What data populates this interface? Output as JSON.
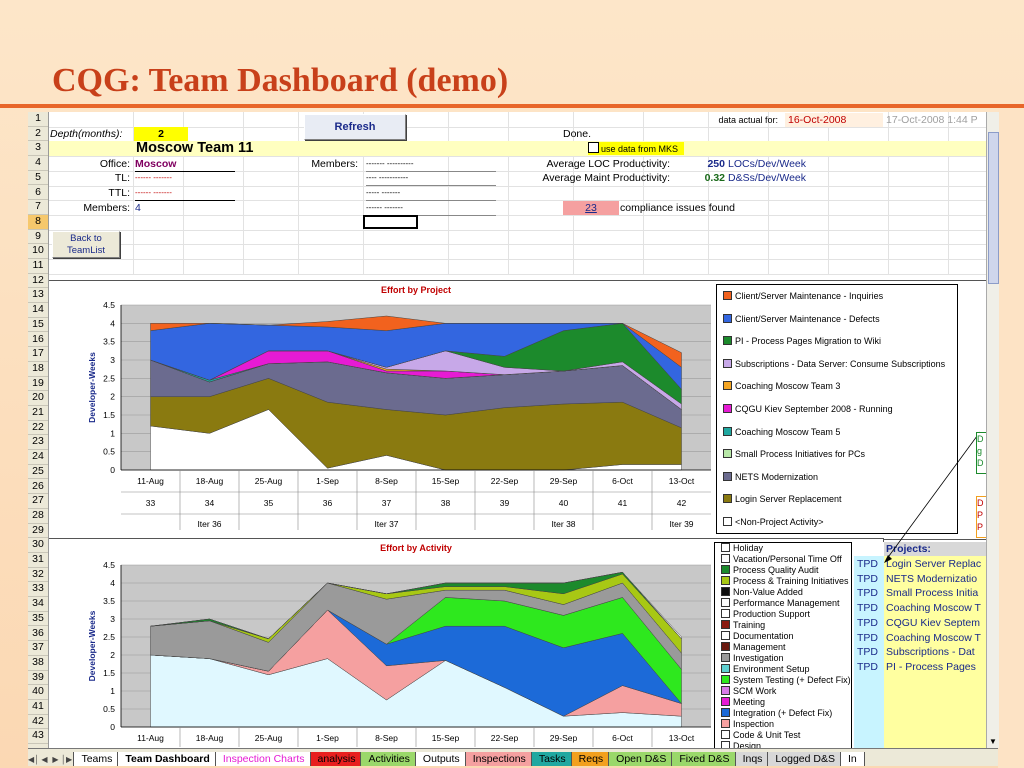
{
  "slide": {
    "title": "CQG: Team Dashboard (demo)"
  },
  "rows": [
    "1",
    "2",
    "3",
    "4",
    "5",
    "6",
    "7",
    "8",
    "9",
    "10",
    "11",
    "12",
    "13",
    "14",
    "15",
    "16",
    "17",
    "18",
    "19",
    "20",
    "21",
    "22",
    "23",
    "24",
    "25",
    "26",
    "27",
    "28",
    "29",
    "30",
    "31",
    "32",
    "33",
    "34",
    "35",
    "36",
    "37",
    "38",
    "39",
    "40",
    "41",
    "42",
    "43"
  ],
  "header": {
    "depth_label": "Depth(months):",
    "depth_value": "2",
    "refresh_label": "Refresh",
    "data_actual_label": "data actual for:",
    "data_actual_value": "16-Oct-2008",
    "timestamp": "17-Oct-2008 1:44 P",
    "done_text": "Done.",
    "team_name": "Moscow Team 11",
    "mks_checkbox_label": "use data from MKS",
    "office_label": "Office:",
    "office_value": "Moscow",
    "tl_label": "TL:",
    "tl_value": "------ -------",
    "ttl_label": "TTL:",
    "ttl_value": "------ -------",
    "members_label": "Members:",
    "members_value": "4",
    "members2_label": "Members:",
    "member_names": [
      "------- ----------",
      "---- -----------",
      "----- -------",
      "------ -------"
    ],
    "loc_label": "Average LOC Productivity:",
    "loc_value": "250",
    "loc_unit": "LOCs/Dev/Week",
    "maint_label": "Average Maint Productivity:",
    "maint_value": "0.32",
    "maint_unit": "D&Ss/Dev/Week",
    "compliance_value": "23",
    "compliance_text": "compliance issues found",
    "back_button": "Back to TeamList"
  },
  "chart_data": [
    {
      "type": "area",
      "title": "Effort by Project",
      "ylabel": "Developer-Weeks",
      "ylim": [
        0,
        4.5
      ],
      "yticks": [
        "0",
        "0.5",
        "1",
        "1.5",
        "2",
        "2.5",
        "3",
        "3.5",
        "4",
        "4.5"
      ],
      "categories": [
        "11-Aug",
        "18-Aug",
        "25-Aug",
        "1-Sep",
        "8-Sep",
        "15-Sep",
        "22-Sep",
        "29-Sep",
        "6-Oct",
        "13-Oct"
      ],
      "weeks": [
        "33",
        "34",
        "35",
        "36",
        "37",
        "38",
        "39",
        "40",
        "41",
        "42"
      ],
      "iterations": [
        "Iter 36",
        "Iter 37",
        "Iter 38",
        "Iter 39"
      ],
      "legend": [
        {
          "name": "Client/Server Maintenance - Inquiries",
          "color": "#f2621e"
        },
        {
          "name": "Client/Server Maintenance - Defects",
          "color": "#3366e0"
        },
        {
          "name": "PI - Process Pages Migration to Wiki",
          "color": "#1c8a2c"
        },
        {
          "name": "Subscriptions - Data Server: Consume Subscriptions",
          "color": "#c7a8e8"
        },
        {
          "name": "Coaching Moscow Team 3",
          "color": "#f5a623"
        },
        {
          "name": "CQGU Kiev September 2008 - Running",
          "color": "#e61bd4"
        },
        {
          "name": "Coaching Moscow Team 5",
          "color": "#20a8a0"
        },
        {
          "name": "Small Process Initiatives for PCs",
          "color": "#b8e8a8"
        },
        {
          "name": "NETS Modernization",
          "color": "#6b6b8f"
        },
        {
          "name": "Login Server Replacement",
          "color": "#8a7a10"
        },
        {
          "name": "<Non-Project Activity>",
          "color": "#ffffff"
        }
      ],
      "series": [
        {
          "name": "<Non-Project Activity>",
          "color": "#ffffff",
          "values": [
            1.2,
            1.0,
            1.65,
            0.05,
            0.4,
            0,
            0,
            0,
            0.15,
            0.15
          ]
        },
        {
          "name": "Login Server Replacement",
          "color": "#8a7a10",
          "values": [
            0.8,
            1.0,
            0.85,
            1.8,
            1.25,
            1.5,
            1.7,
            1.8,
            1.7,
            1.0
          ]
        },
        {
          "name": "NETS Modernization",
          "color": "#6b6b8f",
          "values": [
            1.0,
            0.4,
            0.4,
            1.1,
            1.0,
            1.0,
            0.9,
            0.9,
            1.0,
            0.5
          ]
        },
        {
          "name": "Small Process Initiatives for PCs",
          "color": "#b8e8a8",
          "values": [
            0,
            0,
            0,
            0,
            0,
            0,
            0,
            0,
            0,
            0
          ]
        },
        {
          "name": "Coaching Moscow Team 5",
          "color": "#20a8a0",
          "values": [
            0,
            0.05,
            0,
            0,
            0,
            0,
            0,
            0,
            0,
            0
          ]
        },
        {
          "name": "CQGU Kiev September 2008 - Running",
          "color": "#e61bd4",
          "values": [
            0,
            0,
            0.35,
            0.3,
            0.05,
            0.2,
            0,
            0,
            0,
            0
          ]
        },
        {
          "name": "Coaching Moscow Team 3",
          "color": "#f5a623",
          "values": [
            0,
            0,
            0,
            0,
            0.05,
            0,
            0,
            0,
            0,
            0
          ]
        },
        {
          "name": "Subscriptions - Data Server: Consume Subscriptions",
          "color": "#c7a8e8",
          "values": [
            0,
            0,
            0,
            0,
            0.05,
            0.55,
            0.2,
            0,
            0.1,
            0.15
          ]
        },
        {
          "name": "PI - Process Pages Migration to Wiki",
          "color": "#1c8a2c",
          "values": [
            0,
            0,
            0,
            0,
            0,
            0,
            0.3,
            1.1,
            1.05,
            0.4
          ]
        },
        {
          "name": "Client/Server Maintenance - Defects",
          "color": "#3366e0",
          "values": [
            0.8,
            1.55,
            0.7,
            0.65,
            1.0,
            0.75,
            0.9,
            0.2,
            0,
            0.6
          ]
        },
        {
          "name": "Client/Server Maintenance - Inquiries",
          "color": "#f2621e",
          "values": [
            0.2,
            0,
            0,
            0.15,
            0.4,
            0,
            0,
            0,
            0,
            0.4
          ]
        }
      ]
    },
    {
      "type": "area",
      "title": "Effort by Activity",
      "ylabel": "Developer-Weeks",
      "ylim": [
        0,
        4.5
      ],
      "yticks": [
        "0",
        "0.5",
        "1",
        "1.5",
        "2",
        "2.5",
        "3",
        "3.5",
        "4",
        "4.5"
      ],
      "categories": [
        "11-Aug",
        "18-Aug",
        "25-Aug",
        "1-Sep",
        "8-Sep",
        "15-Sep",
        "22-Sep",
        "29-Sep",
        "6-Oct",
        "13-Oct"
      ],
      "legend": [
        {
          "name": "Holiday",
          "color": "#ffffff"
        },
        {
          "name": "Vacation/Personal Time Off",
          "color": "#ffffff"
        },
        {
          "name": "Process Quality Audit",
          "color": "#1c8a2c"
        },
        {
          "name": "Process & Training Initiatives",
          "color": "#a8c814"
        },
        {
          "name": "Non-Value Added",
          "color": "#101010"
        },
        {
          "name": "Performance Management",
          "color": "#ffffff"
        },
        {
          "name": "Production Support",
          "color": "#ffffff"
        },
        {
          "name": "Training",
          "color": "#8a1a10"
        },
        {
          "name": "Documentation",
          "color": "#ffffff"
        },
        {
          "name": "Management",
          "color": "#6a1a10"
        },
        {
          "name": "Investigation",
          "color": "#9a9a9a"
        },
        {
          "name": "Environment Setup",
          "color": "#5fd0d0"
        },
        {
          "name": "System Testing (+ Defect Fix)",
          "color": "#2ee81e"
        },
        {
          "name": "SCM Work",
          "color": "#d87ae8"
        },
        {
          "name": "Meeting",
          "color": "#e61bd4"
        },
        {
          "name": "Integration (+ Defect Fix)",
          "color": "#1c6ad8"
        },
        {
          "name": "Inspection",
          "color": "#f5a0a0"
        },
        {
          "name": "Code & Unit Test",
          "color": "#ffffff"
        },
        {
          "name": "Design",
          "color": "#ffffff"
        }
      ],
      "series": [
        {
          "name": "Code & Unit Test",
          "color": "#e0f8ff",
          "values": [
            2.0,
            1.9,
            1.45,
            1.9,
            0.75,
            1.85,
            1.1,
            0.3,
            0.4,
            0.3
          ]
        },
        {
          "name": "Inspection",
          "color": "#f5a0a0",
          "values": [
            0,
            0,
            0.1,
            1.35,
            0.95,
            0,
            0,
            0,
            0.75,
            0.35
          ]
        },
        {
          "name": "Integration (+ Defect Fix)",
          "color": "#1c6ad8",
          "values": [
            0,
            0,
            0,
            0,
            0.6,
            0.95,
            1.7,
            1.9,
            1.45,
            0
          ]
        },
        {
          "name": "System Testing (+ Defect Fix)",
          "color": "#2ee81e",
          "values": [
            0,
            0,
            0,
            0,
            0,
            0.8,
            0.7,
            0.9,
            1.0,
            0.95
          ]
        },
        {
          "name": "Investigation",
          "color": "#9a9a9a",
          "values": [
            0.8,
            1.05,
            0.8,
            0.75,
            1.25,
            0.2,
            0.3,
            0.3,
            0.4,
            0.45
          ]
        },
        {
          "name": "Process & Training Initiatives",
          "color": "#a8c814",
          "values": [
            0,
            0,
            0.1,
            0,
            0.15,
            0.1,
            0.1,
            0.3,
            0.25,
            0.4
          ]
        },
        {
          "name": "Process Quality Audit",
          "color": "#1c8a2c",
          "values": [
            0,
            0.05,
            0,
            0,
            0,
            0.1,
            0.1,
            0.3,
            0.05,
            0
          ]
        },
        {
          "name": "Vacation/Personal Time Off",
          "color": "#ffffff",
          "values": [
            0,
            0,
            0,
            0,
            0,
            0,
            0,
            0,
            0,
            0.05
          ]
        }
      ]
    }
  ],
  "projects_table": {
    "header": "Projects:",
    "rows": [
      {
        "code": "TPD",
        "name": "Login Server Replac"
      },
      {
        "code": "TPD",
        "name": "NETS Modernizatio"
      },
      {
        "code": "TPD",
        "name": "Small Process Initia"
      },
      {
        "code": "TPD",
        "name": "Coaching Moscow T"
      },
      {
        "code": "TPD",
        "name": "CQGU Kiev Septem"
      },
      {
        "code": "TPD",
        "name": "Coaching Moscow T"
      },
      {
        "code": "TPD",
        "name": "Subscriptions - Dat"
      },
      {
        "code": "TPD",
        "name": "PI - Process Pages"
      }
    ]
  },
  "side_notes": {
    "a": "D",
    "b": "g",
    "c": "D",
    "d": "D",
    "e": "P",
    "f": "P"
  },
  "tabs": [
    "Teams",
    "Team Dashboard",
    "Inspection Charts",
    "analysis",
    "Activities",
    "Outputs",
    "Inspections",
    "Tasks",
    "Reqs",
    "Open D&S",
    "Fixed D&S",
    "Inqs",
    "Logged D&S",
    "In"
  ],
  "tab_colors": [
    "#ffffff",
    "#ffffff",
    "#ffffff",
    "#ffffff",
    "#ffffff",
    "#ffffff",
    "#ffffff",
    "#ffffff",
    "#ffffff",
    "#ffffff",
    "#ffffff",
    "#ffffff",
    "#ffffff",
    "#ffffff"
  ],
  "tab_text_colors": [
    "#000000",
    "#000000",
    "#e61bd4",
    "#000000",
    "#000000",
    "#000000",
    "#000000",
    "#000000",
    "#000000",
    "#000000",
    "#000000",
    "#000000",
    "#000000",
    "#000000"
  ],
  "tab_bg_colors": [
    "#ffffff",
    "#ffffff",
    "#ffffff",
    "#e8201e",
    "#9ad86a",
    "#ffffff",
    "#f5a0a0",
    "#20a8a0",
    "#f2a01e",
    "#9ad86a",
    "#9ad86a",
    "#d8d8d8",
    "#d8d8d8",
    "#ffffff"
  ]
}
